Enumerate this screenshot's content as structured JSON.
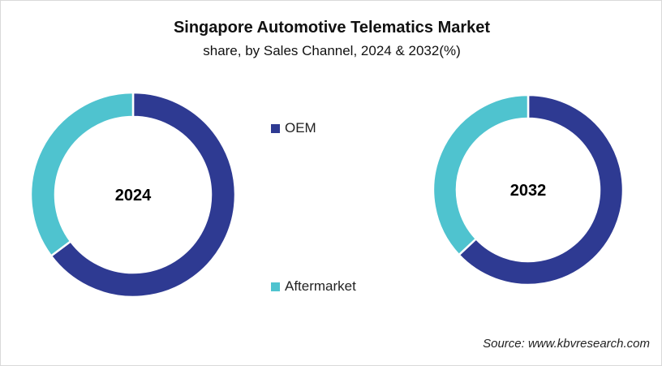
{
  "chart_data": {
    "type": "pie",
    "subtype": "donut",
    "title": "Singapore Automotive Telematics Market",
    "subtitle": "share, by Sales Channel, 2024 & 2032(%)",
    "series_names": [
      "OEM",
      "Aftermarket"
    ],
    "colors": {
      "OEM": "#2e3a92",
      "Aftermarket": "#4fc3cf"
    },
    "charts": [
      {
        "label": "2024",
        "values": {
          "OEM": 64.8,
          "Aftermarket": 35.2
        }
      },
      {
        "label": "2032",
        "values": {
          "OEM": 63.0,
          "Aftermarket": 37.0
        }
      }
    ],
    "legend_placement": "center"
  },
  "source": "Source: www.kbvresearch.com"
}
